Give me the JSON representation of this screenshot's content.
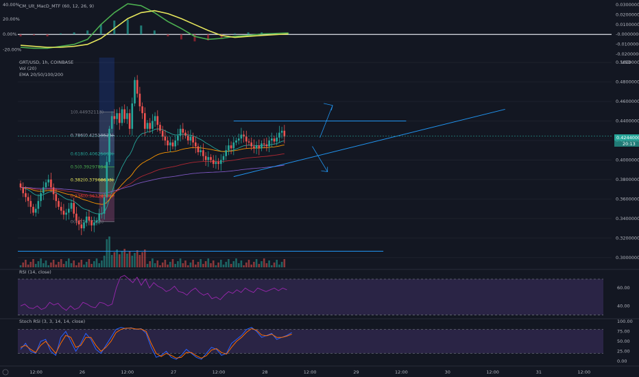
{
  "chart_data": [
    {
      "type": "line",
      "pane": "macd",
      "title": "CM_Ult_MacD_MTF (60, 12, 26, 9)",
      "left_ticks": [
        "40.00%",
        "20.00%",
        "0.00%",
        "-20.00%"
      ],
      "right_ticks": [
        "0.03000000",
        "0.02000000",
        "0.01000000",
        "-0.00000000",
        "-0.01000000",
        "-0.02000000"
      ],
      "ylim": [
        -0.022,
        0.032
      ],
      "x": [
        0,
        4,
        8,
        12,
        16,
        20,
        24,
        28,
        32,
        36,
        40,
        44,
        48,
        52,
        56,
        60,
        64,
        68,
        72,
        80
      ],
      "series": [
        {
          "color": "#4caf50",
          "values": [
            -0.013,
            -0.014,
            -0.014,
            -0.012,
            -0.01,
            -0.005,
            0.01,
            0.022,
            0.031,
            0.029,
            0.022,
            0.013,
            0.006,
            -0.002,
            -0.005,
            -0.004,
            -0.002,
            -0.001,
            0.0005,
            0.0015
          ]
        },
        {
          "color": "#e6e65c",
          "values": [
            -0.011,
            -0.012,
            -0.013,
            -0.013,
            -0.012,
            -0.01,
            -0.004,
            0.006,
            0.016,
            0.022,
            0.024,
            0.021,
            0.016,
            0.01,
            0.004,
            -0.001,
            -0.003,
            -0.002,
            -0.001,
            0.0005
          ]
        }
      ],
      "histogram": [
        -0.002,
        -0.001,
        -0.002,
        0.001,
        0.002,
        0.004,
        0.01,
        0.014,
        0.015,
        0.009,
        0.004,
        -0.002,
        -0.005,
        -0.007,
        -0.006,
        -0.004,
        0.001,
        0.002,
        0.002,
        0.001
      ],
      "zero_line": 0
    },
    {
      "type": "candlestick",
      "pane": "price",
      "title": "GRT/USD, 1h, COINBASE",
      "legend": [
        "Vol (20)",
        "EMA 20/50/100/200"
      ],
      "ylim": [
        0.29,
        0.505
      ],
      "ytick_labels": [
        "0.50000000",
        "0.48000000",
        "0.46000000",
        "0.44000000",
        "0.42000000",
        "0.40000000",
        "0.38000000",
        "0.36000000",
        "0.34000000",
        "0.32000000",
        "0.30000000"
      ],
      "yticks": [
        0.5,
        0.48,
        0.46,
        0.44,
        0.42,
        0.4,
        0.38,
        0.36,
        0.34,
        0.32,
        0.3
      ],
      "currency": "USD",
      "last_price": "0.42440000",
      "last_price_value": 0.4244,
      "countdown": "20:13",
      "x_tick_labels": [
        "12:00",
        "26",
        "12:00",
        "27",
        "12:00",
        "28",
        "12:00",
        "29",
        "12:00",
        "30",
        "12:00",
        "31",
        "12:00"
      ],
      "x_tick_positions": [
        6,
        24,
        42,
        60,
        78,
        96,
        114,
        132,
        150,
        168,
        186,
        204,
        222
      ],
      "closes": [
        0.372,
        0.366,
        0.362,
        0.358,
        0.352,
        0.346,
        0.35,
        0.358,
        0.366,
        0.372,
        0.377,
        0.38,
        0.372,
        0.365,
        0.358,
        0.352,
        0.348,
        0.344,
        0.346,
        0.35,
        0.356,
        0.345,
        0.338,
        0.334,
        0.33,
        0.336,
        0.342,
        0.338,
        0.333,
        0.336,
        0.338,
        0.345,
        0.345,
        0.362,
        0.398,
        0.432,
        0.445,
        0.442,
        0.448,
        0.438,
        0.452,
        0.442,
        0.448,
        0.432,
        0.458,
        0.482,
        0.468,
        0.455,
        0.448,
        0.432,
        0.438,
        0.432,
        0.44,
        0.445,
        0.436,
        0.43,
        0.424,
        0.42,
        0.415,
        0.418,
        0.414,
        0.42,
        0.425,
        0.432,
        0.428,
        0.425,
        0.42,
        0.424,
        0.418,
        0.414,
        0.408,
        0.41,
        0.404,
        0.4,
        0.403,
        0.4,
        0.396,
        0.398,
        0.396,
        0.4,
        0.404,
        0.41,
        0.415,
        0.412,
        0.418,
        0.42,
        0.422,
        0.426,
        0.424,
        0.419,
        0.418,
        0.414,
        0.412,
        0.415,
        0.412,
        0.417,
        0.416,
        0.414,
        0.42,
        0.422,
        0.419,
        0.423,
        0.428,
        0.43,
        0.424
      ],
      "fib_levels": [
        {
          "label": "1(0.44932113)",
          "value": 0.4493,
          "color": "#787b86"
        },
        {
          "label": "0.786(0.42519524)",
          "value": 0.4252,
          "color": "#a9b6c8"
        },
        {
          "label": "0.618(0.40625099)",
          "value": 0.4063,
          "color": "#26a69a"
        },
        {
          "label": "0.5(0.39297894)",
          "value": 0.393,
          "color": "#4caf50"
        },
        {
          "label": "0.382(0.37968693)",
          "value": 0.3797,
          "color": "#e6e65c"
        },
        {
          "label": "0.236(0.36324086)",
          "value": 0.3632,
          "color": "#f44336"
        },
        {
          "label": "0(0.33677566)",
          "value": 0.3368,
          "color": "#787b86"
        }
      ],
      "resistance": 0.44,
      "support_line": {
        "from": [
          56,
          0.383
        ],
        "to": [
          98,
          0.44
        ]
      },
      "horizontal_line": 0.3065
    },
    {
      "type": "line",
      "pane": "rsi",
      "title": "RSI (14, close)",
      "ylim": [
        28,
        80
      ],
      "ytick_labels": [
        "60.00",
        "40.00"
      ],
      "yticks": [
        60,
        40
      ],
      "band": [
        30,
        70
      ],
      "values": [
        40,
        42,
        38,
        37,
        40,
        36,
        38,
        44,
        41,
        43,
        38,
        35,
        40,
        36,
        38,
        44,
        42,
        39,
        38,
        44,
        43,
        40,
        42,
        60,
        72,
        74,
        70,
        66,
        72,
        63,
        70,
        60,
        66,
        62,
        60,
        56,
        58,
        62,
        56,
        55,
        52,
        57,
        60,
        55,
        52,
        54,
        48,
        50,
        47,
        52,
        56,
        54,
        58,
        55,
        60,
        57,
        55,
        60,
        58,
        56,
        58,
        60,
        57,
        60,
        58
      ]
    },
    {
      "type": "line",
      "pane": "stoch_rsi",
      "title": "Stoch RSI (3, 3, 14, 14, close)",
      "ylim": [
        -5,
        105
      ],
      "ytick_labels": [
        "100.00",
        "75.00",
        "50.00",
        "25.00",
        "0.00"
      ],
      "yticks": [
        100,
        75,
        50,
        25,
        0
      ],
      "band": [
        20,
        80
      ],
      "series": [
        {
          "color": "#2962ff",
          "values": [
            30,
            45,
            25,
            20,
            50,
            55,
            25,
            15,
            60,
            75,
            50,
            25,
            45,
            70,
            55,
            30,
            20,
            40,
            60,
            80,
            85,
            82,
            84,
            80,
            82,
            70,
            35,
            10,
            15,
            25,
            10,
            5,
            15,
            30,
            20,
            10,
            5,
            20,
            35,
            30,
            15,
            20,
            45,
            55,
            65,
            80,
            85,
            75,
            60,
            65,
            70,
            55,
            60,
            65,
            72
          ]
        },
        {
          "color": "#ff6d00",
          "values": [
            35,
            40,
            30,
            22,
            40,
            50,
            35,
            20,
            45,
            65,
            60,
            35,
            40,
            60,
            60,
            40,
            25,
            35,
            50,
            72,
            80,
            83,
            83,
            81,
            81,
            75,
            45,
            20,
            12,
            20,
            15,
            8,
            10,
            22,
            22,
            14,
            8,
            14,
            28,
            32,
            22,
            18,
            35,
            50,
            60,
            73,
            82,
            78,
            66,
            64,
            68,
            60,
            60,
            63,
            68
          ]
        }
      ]
    }
  ]
}
